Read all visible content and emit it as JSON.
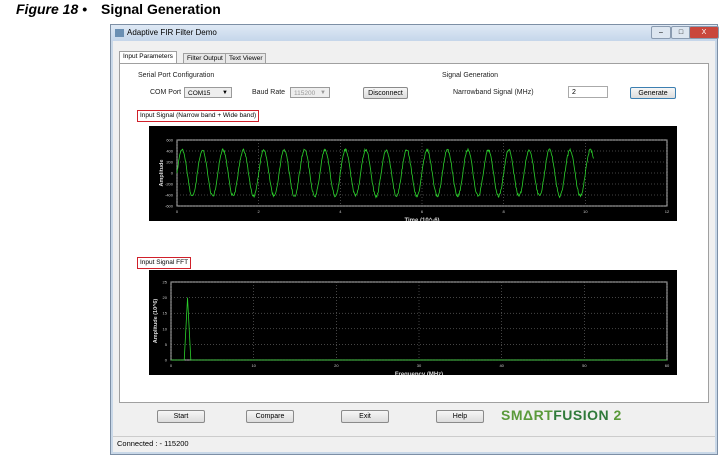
{
  "figure": {
    "number": "Figure 18 •",
    "title": "Signal Generation"
  },
  "window": {
    "title": "Adaptive FIR Filter Demo",
    "minimize": "–",
    "maximize": "□",
    "close": "X"
  },
  "tabs": [
    {
      "label": "Input Parameters",
      "active": true
    },
    {
      "label": "Filter Output"
    },
    {
      "label": "Text Viewer"
    }
  ],
  "serial": {
    "group": "Serial Port Configuration",
    "com_label": "COM Port",
    "com_value": "COM15",
    "baud_label": "Baud Rate",
    "baud_value": "115200",
    "disconnect": "Disconnect"
  },
  "signal": {
    "group": "Signal Generation",
    "narrow_label": "Narrowband Signal (MHz)",
    "narrow_value": "2",
    "generate": "Generate"
  },
  "plots": {
    "input_title": "Input Signal (Narrow band + Wide band)",
    "fft_title": "Input Signal FFT"
  },
  "buttons": {
    "start": "Start",
    "compare": "Compare",
    "exit": "Exit",
    "help": "Help"
  },
  "logo": {
    "text1": "SMΔRT",
    "text2": "FUSION",
    "text3": "2"
  },
  "status": "Connected :  - 115200",
  "colors": {
    "trace": "#2bd12b",
    "plot_bg": "#000000",
    "grid": "#8a8a8a",
    "highlight": "#d0202a"
  },
  "chart_data": [
    {
      "type": "line",
      "xlabel": "Time (10^-6)",
      "ylabel": "Amplitude",
      "xlim": [
        0,
        12
      ],
      "ylim": [
        -600,
        600
      ],
      "xticks": [
        "0",
        "2",
        "4",
        "6",
        "8",
        "10",
        "12"
      ],
      "yticks": [
        "600",
        "400",
        "200",
        "0",
        "-200",
        "-400",
        "-600"
      ],
      "grid": true,
      "series": [
        {
          "frequency_mhz": 2,
          "amplitude": 420,
          "x_end": 10.2
        }
      ]
    },
    {
      "type": "line",
      "xlabel": "Frequency (MHz)",
      "ylabel": "Amplitude (10^6)",
      "xlim": [
        0,
        60
      ],
      "ylim": [
        0,
        25
      ],
      "xticks": [
        "0",
        "10",
        "20",
        "30",
        "40",
        "50",
        "60"
      ],
      "yticks": [
        "25",
        "20",
        "15",
        "10",
        "5",
        "0"
      ],
      "grid": true,
      "series": [
        {
          "peak_x": 2,
          "peak_y": 20
        }
      ]
    }
  ]
}
